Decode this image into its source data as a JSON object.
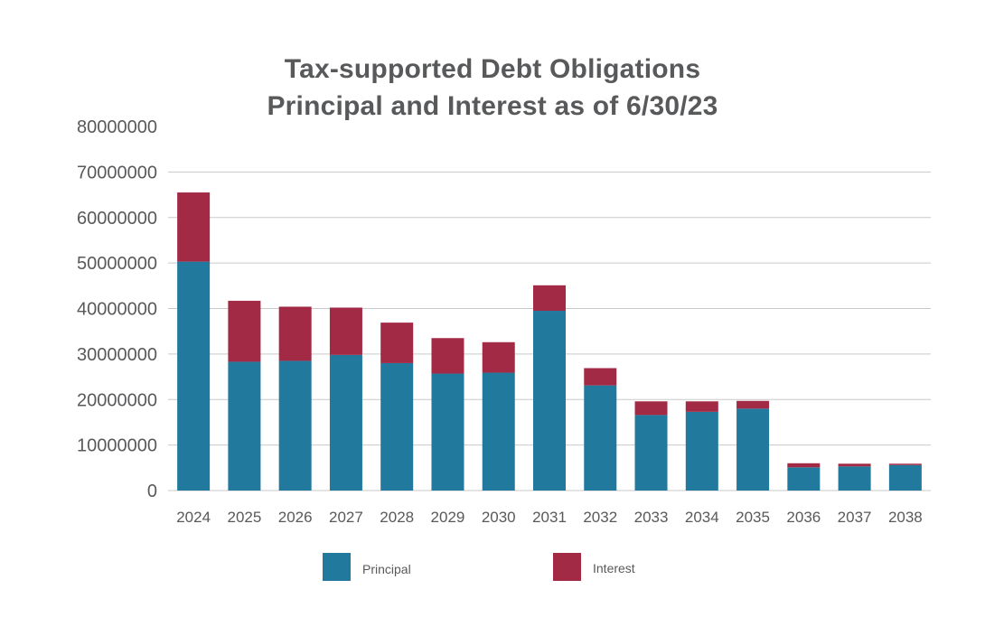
{
  "chart_data": {
    "type": "bar",
    "stacked": true,
    "title_lines": [
      "Tax-supported Debt Obligations",
      "Principal and Interest as of 6/30/23"
    ],
    "categories": [
      "2024",
      "2025",
      "2026",
      "2027",
      "2028",
      "2029",
      "2030",
      "2031",
      "2032",
      "2033",
      "2034",
      "2035",
      "2036",
      "2037",
      "2038"
    ],
    "series": [
      {
        "name": "Principal",
        "color": "#21799e",
        "values": [
          50300000,
          28300000,
          28500000,
          29800000,
          28000000,
          25700000,
          25900000,
          39500000,
          23100000,
          16600000,
          17300000,
          18000000,
          5100000,
          5300000,
          5600000
        ]
      },
      {
        "name": "Interest",
        "color": "#a32a45",
        "values": [
          15200000,
          13400000,
          11900000,
          10400000,
          8900000,
          7800000,
          6700000,
          5600000,
          3800000,
          3000000,
          2300000,
          1700000,
          900000,
          600000,
          300000
        ]
      }
    ],
    "yticks": [
      "0",
      "10000000",
      "20000000",
      "30000000",
      "40000000",
      "50000000",
      "60000000",
      "70000000",
      "80000000"
    ],
    "ylim": [
      0,
      80000000
    ],
    "grid": true,
    "legend_position": "bottom"
  }
}
